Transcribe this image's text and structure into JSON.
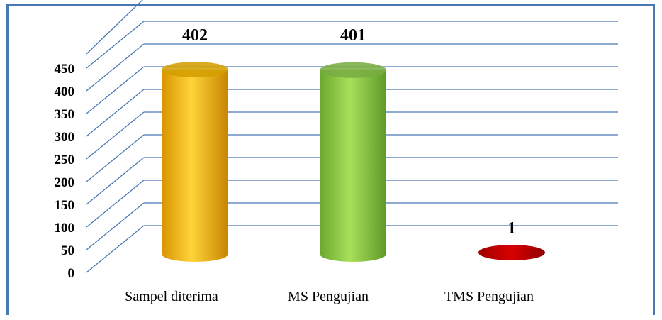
{
  "chart_data": {
    "type": "bar",
    "style": "3d-cylinder",
    "categories": [
      "Sampel diterima",
      "MS Pengujian",
      "TMS Pengujian"
    ],
    "values": [
      402,
      401,
      1
    ],
    "data_labels": [
      "402",
      "401",
      "1"
    ],
    "bar_colors": [
      "#ffc000",
      "#92d050",
      "#c00000"
    ],
    "yticks": [
      "0",
      "50",
      "100",
      "150",
      "200",
      "250",
      "300",
      "350",
      "400",
      "450"
    ],
    "ylim": [
      0,
      450
    ],
    "grid": true,
    "grid_color": "#4a78b5",
    "legend": false
  }
}
